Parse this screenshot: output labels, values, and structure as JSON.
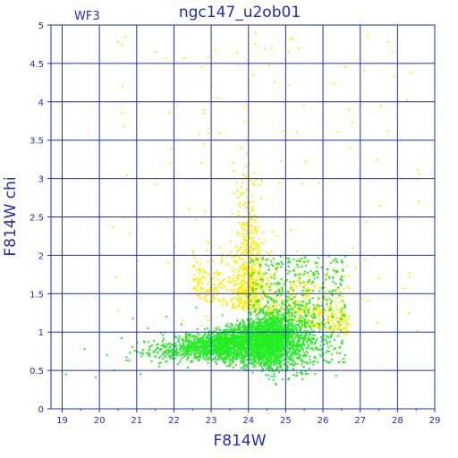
{
  "chart_data": {
    "type": "scatter",
    "title": "ngc147_u2ob01",
    "panel_label": "WF3",
    "xlabel": "F814W",
    "ylabel": "F814W chi",
    "xlim": [
      18.7,
      29.0
    ],
    "ylim": [
      0,
      5
    ],
    "xticks": [
      19,
      20,
      21,
      22,
      23,
      24,
      25,
      26,
      27,
      28,
      29
    ],
    "yticks": [
      0,
      0.5,
      1,
      1.5,
      2,
      2.5,
      3,
      3.5,
      4,
      4.5,
      5
    ],
    "grid": true,
    "colors": {
      "axis": "#1f2fb8",
      "green_points": "#22ee22",
      "yellow_points": "#ffee00"
    },
    "series": [
      {
        "color": "green",
        "description_points": [
          [
            19.1,
            0.45
          ],
          [
            19.6,
            0.78
          ],
          [
            19.9,
            0.41
          ],
          [
            20.2,
            0.7
          ],
          [
            20.4,
            0.5
          ],
          [
            20.6,
            0.92
          ],
          [
            20.8,
            0.63
          ],
          [
            20.9,
            1.18
          ],
          [
            21.0,
            0.74
          ],
          [
            21.1,
            0.45
          ],
          [
            21.2,
            0.88
          ],
          [
            21.3,
            1.05
          ],
          [
            21.4,
            0.62
          ],
          [
            21.5,
            0.77
          ],
          [
            21.6,
            0.55
          ],
          [
            21.7,
            0.96
          ],
          [
            21.8,
            1.2
          ],
          [
            21.9,
            0.68
          ],
          [
            22.0,
            0.84
          ],
          [
            22.1,
            0.58
          ],
          [
            22.2,
            1.1
          ],
          [
            22.3,
            0.73
          ],
          [
            22.4,
            0.95
          ],
          [
            22.5,
            0.62
          ],
          [
            22.6,
            1.32
          ],
          [
            22.7,
            0.81
          ],
          [
            22.8,
            0.69
          ],
          [
            22.9,
            1.05
          ],
          [
            23.0,
            0.77
          ],
          [
            23.1,
            0.9
          ],
          [
            23.2,
            0.66
          ],
          [
            23.3,
            1.22
          ],
          [
            23.4,
            0.84
          ],
          [
            23.5,
            1.0
          ],
          [
            23.6,
            0.72
          ],
          [
            23.7,
            1.15
          ],
          [
            23.8,
            0.88
          ],
          [
            23.9,
            0.75
          ],
          [
            24.0,
            1.08
          ],
          [
            24.1,
            0.9
          ],
          [
            24.2,
            1.3
          ],
          [
            24.3,
            0.82
          ],
          [
            24.4,
            1.02
          ],
          [
            24.5,
            1.45
          ],
          [
            24.6,
            0.95
          ],
          [
            24.7,
            1.2
          ],
          [
            24.8,
            0.88
          ],
          [
            24.9,
            1.1
          ],
          [
            25.0,
            1.35
          ],
          [
            25.1,
            0.92
          ],
          [
            25.2,
            1.15
          ],
          [
            25.3,
            0.85
          ],
          [
            25.4,
            1.05
          ],
          [
            25.5,
            1.28
          ],
          [
            25.6,
            0.9
          ],
          [
            25.7,
            1.12
          ],
          [
            25.8,
            0.8
          ],
          [
            25.9,
            1.0
          ],
          [
            26.0,
            1.2
          ],
          [
            26.1,
            0.88
          ],
          [
            26.2,
            1.05
          ],
          [
            26.3,
            0.78
          ],
          [
            26.4,
            0.95
          ],
          [
            26.5,
            0.85
          ],
          [
            26.6,
            0.7
          ]
        ]
      },
      {
        "color": "yellow",
        "description_points": [
          [
            20.5,
            4.78
          ],
          [
            20.7,
            4.85
          ],
          [
            20.6,
            3.85
          ],
          [
            20.8,
            2.28
          ],
          [
            21.0,
            3.65
          ],
          [
            21.5,
            4.65
          ],
          [
            21.9,
            3.2
          ],
          [
            22.0,
            2.25
          ],
          [
            22.4,
            2.6
          ],
          [
            22.8,
            3.0
          ],
          [
            23.0,
            4.2
          ],
          [
            23.2,
            4.05
          ],
          [
            23.4,
            2.5
          ],
          [
            23.6,
            3.1
          ],
          [
            23.7,
            2.85
          ],
          [
            23.8,
            3.4
          ],
          [
            23.9,
            3.75
          ],
          [
            24.0,
            4.25
          ],
          [
            24.0,
            3.0
          ],
          [
            24.1,
            2.6
          ],
          [
            24.2,
            2.1
          ],
          [
            24.3,
            1.9
          ],
          [
            24.4,
            2.3
          ],
          [
            24.5,
            1.6
          ],
          [
            24.6,
            1.75
          ],
          [
            24.7,
            4.25
          ],
          [
            25.0,
            2.3
          ],
          [
            25.3,
            2.05
          ],
          [
            25.5,
            1.75
          ],
          [
            25.8,
            1.6
          ],
          [
            26.0,
            1.45
          ],
          [
            26.2,
            1.3
          ],
          [
            26.5,
            1.1
          ],
          [
            26.8,
            2.1
          ],
          [
            27.0,
            2.35
          ],
          [
            27.2,
            1.5
          ],
          [
            27.5,
            1.7
          ],
          [
            28.0,
            1.3
          ],
          [
            28.3,
            1.25
          ],
          [
            24.2,
            4.9
          ]
        ]
      }
    ]
  }
}
